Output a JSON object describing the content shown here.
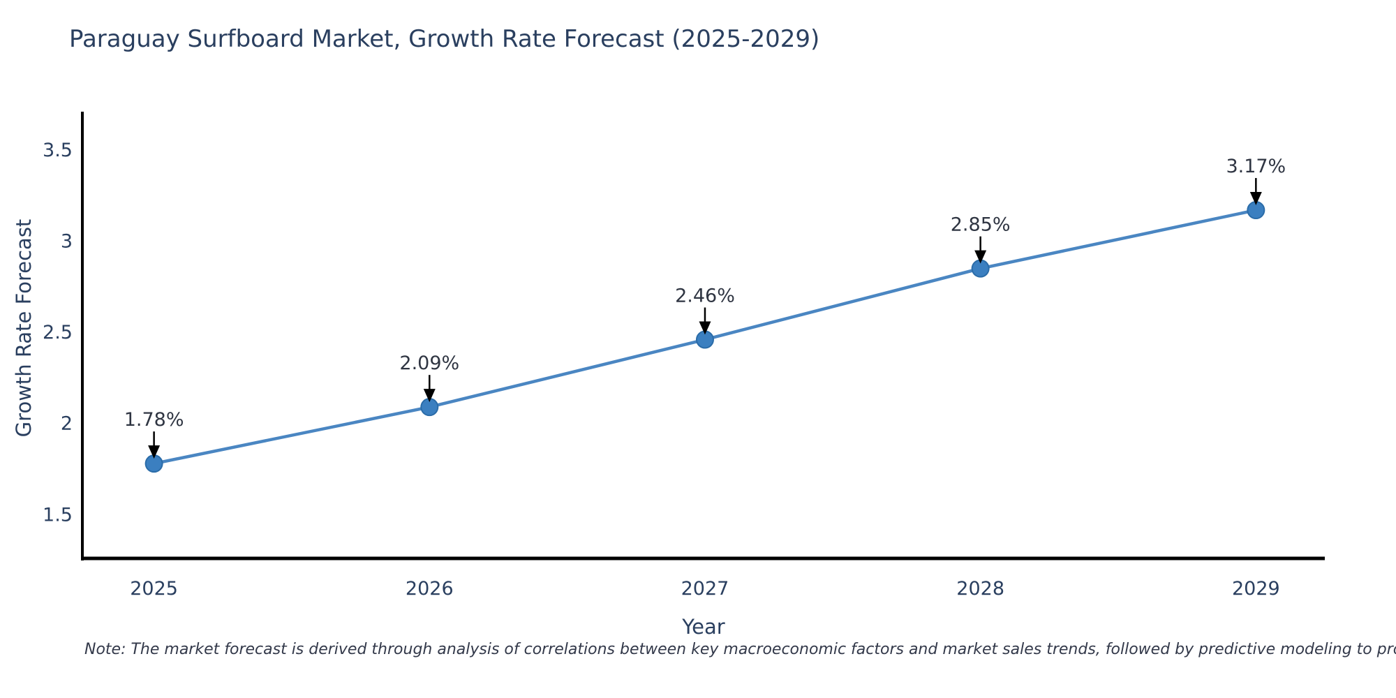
{
  "page": {
    "title": "Paraguay Surfboard Market, Growth Rate Forecast (2025-2029)",
    "note": "Note: The market forecast is derived through analysis of correlations between key macroeconomic factors and market sales trends, followed by predictive modeling to project future sales"
  },
  "chart_data": {
    "type": "line",
    "title": "Paraguay Surfboard Market, Growth Rate Forecast (2025-2029)",
    "xlabel": "Year",
    "ylabel": "Growth Rate Forecast",
    "x": [
      2025,
      2026,
      2027,
      2028,
      2029
    ],
    "series": [
      {
        "name": "Growth Rate Forecast",
        "values": [
          1.78,
          2.09,
          2.46,
          2.85,
          3.17
        ]
      }
    ],
    "point_labels": [
      "1.78%",
      "2.09%",
      "2.46%",
      "2.85%",
      "3.17%"
    ],
    "ytick_labels": [
      "1.5",
      "2",
      "2.5",
      "3",
      "3.5"
    ],
    "ytick_values": [
      1.5,
      2,
      2.5,
      3,
      3.5
    ],
    "xlim": [
      2024.74,
      2029.25
    ],
    "ylim": [
      1.26,
      3.71
    ],
    "grid": false,
    "legend_position": "none",
    "annotation_style": "value label with down arrow onto marker",
    "colors": {
      "line": "#4a86c2",
      "marker": "#3b7fc0",
      "marker_edge": "#2b6ca8",
      "axis": "#000000",
      "text": "#2a3f5f",
      "annotation_text": "#2f3542",
      "annotation_arrow": "#000000",
      "background": "#ffffff"
    }
  }
}
